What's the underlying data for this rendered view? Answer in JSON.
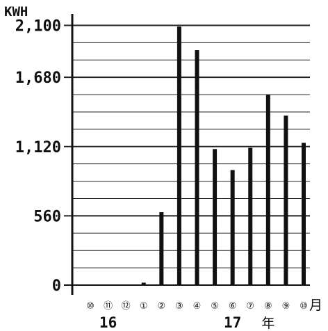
{
  "chart_data": {
    "type": "bar",
    "ylabel": "KWH",
    "categories": [
      "⑩",
      "⑪",
      "⑫",
      "①",
      "②",
      "③",
      "④",
      "⑤",
      "⑥",
      "⑦",
      "⑧",
      "⑨",
      "⑩"
    ],
    "values": [
      0,
      0,
      0,
      20,
      590,
      2090,
      1900,
      1100,
      930,
      1110,
      1540,
      1370,
      1150
    ],
    "ylim": [
      0,
      2170
    ],
    "yticks": [
      0,
      560,
      1120,
      1680,
      2100
    ],
    "ytick_labels": [
      "0",
      "560",
      "1,120",
      "1,680",
      "2,100"
    ],
    "minor_grid_step": 140,
    "grid": true,
    "bar_color": "#111111",
    "x_suffix": "月",
    "year_labels": [
      {
        "text": "16",
        "category_index": 1
      },
      {
        "text": "17",
        "category_index": 8
      },
      {
        "text": "年",
        "category_index": 10
      }
    ]
  }
}
